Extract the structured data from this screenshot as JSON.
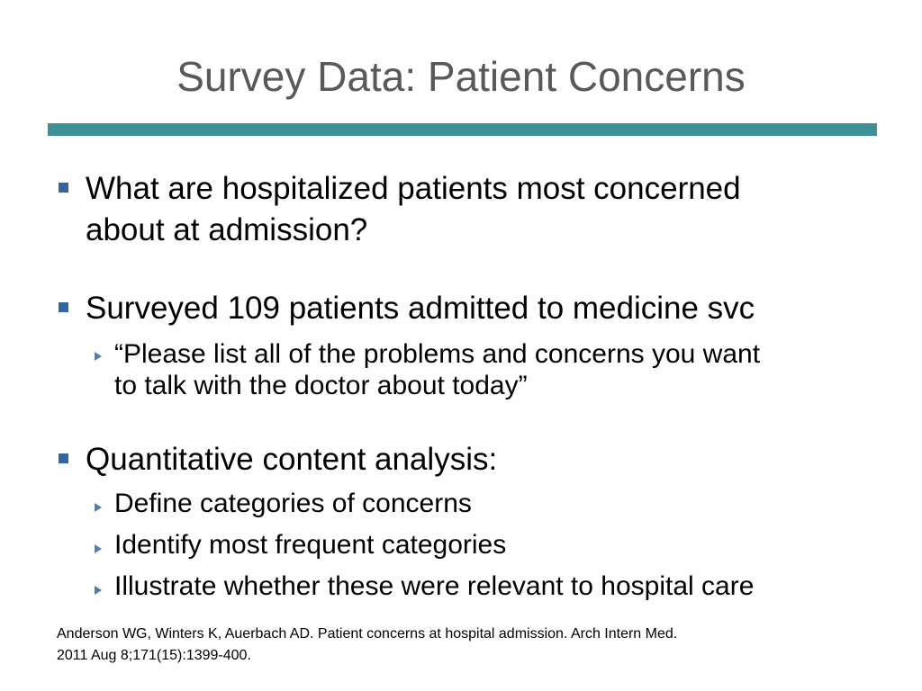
{
  "slide": {
    "title": "Survey Data: Patient Concerns",
    "colors": {
      "title_text": "#595959",
      "rule": "#3f8f97",
      "bullet_square": "#33669e",
      "bullet_triangle": "#4c7fb4"
    },
    "bullets": [
      {
        "lines": [
          "What are hospitalized patients most concerned",
          "about at admission?"
        ],
        "marker_icon": "square-bullet-icon",
        "sub": []
      },
      {
        "lines": [
          "Surveyed 109 patients admitted to medicine svc"
        ],
        "marker_icon": "square-bullet-icon",
        "sub": [
          {
            "lines": [
              "“Please list all of the problems and concerns you want",
              "to talk with the doctor about today”"
            ],
            "marker_icon": "triangle-bullet-icon"
          }
        ]
      },
      {
        "lines": [
          "Quantitative content analysis:"
        ],
        "marker_icon": "square-bullet-icon",
        "sub": [
          {
            "lines": [
              "Define categories of concerns"
            ],
            "marker_icon": "triangle-bullet-icon"
          },
          {
            "lines": [
              "Identify most frequent categories"
            ],
            "marker_icon": "triangle-bullet-icon"
          },
          {
            "lines": [
              "Illustrate whether these were relevant to hospital care"
            ],
            "marker_icon": "triangle-bullet-icon"
          }
        ]
      }
    ],
    "citation": {
      "line1": "Anderson WG, Winters K, Auerbach AD. Patient concerns at hospital admission. Arch Intern Med.",
      "line2": "2011 Aug 8;171(15):1399-400."
    }
  }
}
